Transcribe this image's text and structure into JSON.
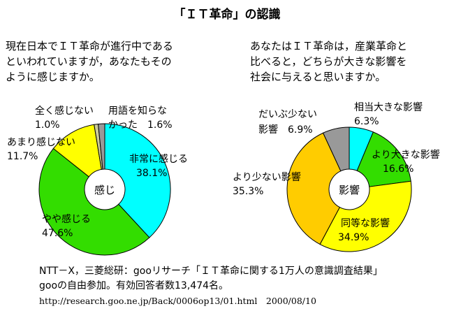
{
  "title": "「ＩＴ革命」の認識",
  "left_question": [
    "現在日本でＩＴ革命が進行中である",
    "といわれていますが，あなたもその",
    "ように感じますか。"
  ],
  "right_question": [
    "あなたはＩＴ革命は，産業革命と",
    "比べると，どちらが大きな影響を",
    "社会に与えると思いますか。"
  ],
  "chart_data": [
    {
      "type": "pie",
      "center_label": "感じ",
      "slices": [
        {
          "name": "非常に感じる",
          "value": 38.1,
          "color": "#00ffff",
          "label_lines": [
            "非常に感じる",
            "38.1%"
          ]
        },
        {
          "name": "やや感じる",
          "value": 47.6,
          "color": "#33dd00",
          "label_lines": [
            "やや感じる",
            "47.6%"
          ]
        },
        {
          "name": "あまり感じない",
          "value": 11.7,
          "color": "#ffff00",
          "label_lines": [
            "あまり感じない",
            "11.7%"
          ]
        },
        {
          "name": "全く感じない",
          "value": 1.0,
          "color": "#cccc99",
          "label_lines": [
            "全く感じない",
            "1.0%"
          ]
        },
        {
          "name": "用語を知らなかった",
          "value": 1.6,
          "color": "#999999",
          "label_lines": [
            "用語を知らな",
            "かった　1.6%"
          ]
        }
      ]
    },
    {
      "type": "pie",
      "center_label": "影響",
      "slices": [
        {
          "name": "相当大きな影響",
          "value": 6.3,
          "color": "#00ffff",
          "label_lines": [
            "相当大きな影響",
            "6.3%"
          ]
        },
        {
          "name": "より大きな影響",
          "value": 16.6,
          "color": "#33dd00",
          "label_lines": [
            "より大きな影響",
            "16.6%"
          ]
        },
        {
          "name": "同等な影響",
          "value": 34.9,
          "color": "#ffff00",
          "label_lines": [
            "同等な影響",
            "34.9%"
          ]
        },
        {
          "name": "より少ない影響",
          "value": 35.3,
          "color": "#ffcc00",
          "label_lines": [
            "より少ない影響",
            "35.3%"
          ]
        },
        {
          "name": "だいぶ少ない影響",
          "value": 6.9,
          "color": "#999999",
          "label_lines": [
            "だいぶ少ない",
            "影響　6.9%"
          ]
        }
      ]
    }
  ],
  "footer": {
    "line1": "NTT－X，三菱総研：gooリサーチ「ＩＴ革命に関する1万人の意識調査結果」",
    "line2": "gooの自由参加。有効回答者数13,474名。",
    "line3": "http://research.goo.ne.jp/Back/0006op13/01.html　2000/08/10"
  }
}
